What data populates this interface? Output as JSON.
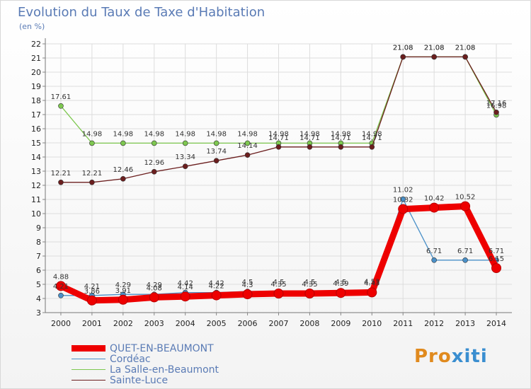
{
  "header": {
    "title": "Evolution du Taux de Taxe d'Habitation",
    "subtitle": "(en %)"
  },
  "brand": {
    "part1": "Pro",
    "part2": "xiti"
  },
  "chart_data": {
    "type": "line",
    "x": [
      "2000",
      "2001",
      "2002",
      "2003",
      "2004",
      "2005",
      "2006",
      "2007",
      "2008",
      "2009",
      "2010",
      "2011",
      "2012",
      "2013",
      "2014"
    ],
    "ylim": [
      3,
      22
    ],
    "yticks": [
      3,
      4,
      5,
      6,
      7,
      8,
      9,
      10,
      11,
      12,
      13,
      14,
      15,
      16,
      17,
      18,
      19,
      20,
      21,
      22
    ],
    "grid": true,
    "legend_position": "bottom-left",
    "series": [
      {
        "name": "QUET-EN-BEAUMONT",
        "color": "#ee0000",
        "emphasis": true,
        "values": [
          4.88,
          3.86,
          3.91,
          4.08,
          4.14,
          4.22,
          4.3,
          4.35,
          4.35,
          4.39,
          4.43,
          10.32,
          10.42,
          10.52,
          6.15
        ],
        "labels": [
          "4.88",
          "3.86",
          "3.91",
          "4.08",
          "4.14",
          "4.22",
          "4.3",
          "4.35",
          "4.35",
          "4.39",
          "4.43",
          "10.32",
          "10.42",
          "10.52",
          "6.15"
        ]
      },
      {
        "name": "Cordéac",
        "color": "#4a90c8",
        "emphasis": false,
        "values": [
          4.21,
          4.21,
          4.29,
          4.29,
          4.42,
          4.42,
          4.5,
          4.5,
          4.5,
          4.5,
          4.53,
          11.02,
          6.71,
          6.71,
          6.71
        ],
        "labels": [
          "4.21",
          "4.21",
          "4.29",
          "4.29",
          "4.42",
          "4.42",
          "4.5",
          "4.5",
          "4.5",
          "4.5",
          "4.53",
          "11.02",
          "6.71",
          "6.71",
          "6.71"
        ]
      },
      {
        "name": "La Salle-en-Beaumont",
        "color": "#7ec850",
        "emphasis": false,
        "values": [
          17.61,
          14.98,
          14.98,
          14.98,
          14.98,
          14.98,
          14.98,
          14.98,
          14.98,
          14.98,
          14.98,
          21.08,
          21.08,
          21.08,
          16.98
        ],
        "labels": [
          "17.61",
          "14.98",
          "14.98",
          "14.98",
          "14.98",
          "14.98",
          "14.98",
          "14.98",
          "14.98",
          "14.98",
          "14.98",
          "21.08",
          "21.08",
          "21.08",
          "16.98"
        ]
      },
      {
        "name": "Sainte-Luce",
        "color": "#6b1e1e",
        "emphasis": false,
        "values": [
          12.21,
          12.21,
          12.46,
          12.96,
          13.34,
          13.74,
          14.14,
          14.71,
          14.71,
          14.71,
          14.71,
          21.08,
          21.08,
          21.08,
          17.16
        ],
        "labels": [
          "12.21",
          "12.21",
          "12.46",
          "12.96",
          "13.34",
          "13.74",
          "14.14",
          "14.71",
          "14.71",
          "14.71",
          "14.71",
          "21.08",
          "21.08",
          "21.08",
          "17.16"
        ]
      }
    ]
  }
}
